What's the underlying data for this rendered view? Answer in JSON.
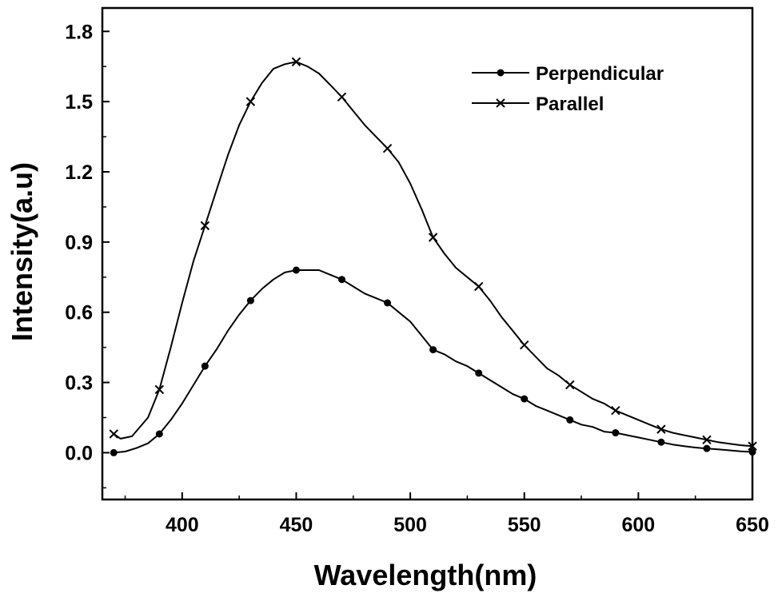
{
  "chart_data": {
    "type": "line",
    "xlabel": "Wavelength(nm)",
    "ylabel": "Intensity(a.u)",
    "xlim": [
      365,
      650
    ],
    "ylim": [
      -0.2,
      1.9
    ],
    "x_ticks": [
      400,
      450,
      500,
      550,
      600,
      650
    ],
    "y_ticks": [
      0.0,
      0.3,
      0.6,
      0.9,
      1.2,
      1.5,
      1.8
    ],
    "x_tick_labels": [
      "400",
      "450",
      "500",
      "550",
      "600",
      "650"
    ],
    "y_tick_labels": [
      "0.0",
      "0.3",
      "0.6",
      "0.9",
      "1.2",
      "1.5",
      "1.8"
    ],
    "grid": false,
    "legend_position": "top-right",
    "series": [
      {
        "name": "Perpendicular",
        "marker": "circle",
        "color": "#000000",
        "curve": [
          [
            370,
            0.0
          ],
          [
            375,
            0.005
          ],
          [
            380,
            0.02
          ],
          [
            385,
            0.04
          ],
          [
            390,
            0.08
          ],
          [
            395,
            0.14
          ],
          [
            400,
            0.21
          ],
          [
            405,
            0.29
          ],
          [
            410,
            0.37
          ],
          [
            415,
            0.44
          ],
          [
            420,
            0.52
          ],
          [
            425,
            0.59
          ],
          [
            430,
            0.65
          ],
          [
            435,
            0.7
          ],
          [
            440,
            0.74
          ],
          [
            445,
            0.77
          ],
          [
            450,
            0.78
          ],
          [
            455,
            0.78
          ],
          [
            460,
            0.78
          ],
          [
            465,
            0.76
          ],
          [
            470,
            0.74
          ],
          [
            475,
            0.71
          ],
          [
            480,
            0.68
          ],
          [
            485,
            0.66
          ],
          [
            490,
            0.64
          ],
          [
            495,
            0.6
          ],
          [
            500,
            0.56
          ],
          [
            505,
            0.5
          ],
          [
            510,
            0.44
          ],
          [
            515,
            0.42
          ],
          [
            520,
            0.39
          ],
          [
            525,
            0.37
          ],
          [
            530,
            0.34
          ],
          [
            535,
            0.31
          ],
          [
            540,
            0.28
          ],
          [
            545,
            0.25
          ],
          [
            550,
            0.23
          ],
          [
            555,
            0.2
          ],
          [
            560,
            0.18
          ],
          [
            565,
            0.16
          ],
          [
            570,
            0.14
          ],
          [
            575,
            0.12
          ],
          [
            580,
            0.11
          ],
          [
            585,
            0.09
          ],
          [
            590,
            0.085
          ],
          [
            595,
            0.075
          ],
          [
            600,
            0.065
          ],
          [
            605,
            0.055
          ],
          [
            610,
            0.045
          ],
          [
            615,
            0.035
          ],
          [
            620,
            0.028
          ],
          [
            625,
            0.022
          ],
          [
            630,
            0.018
          ],
          [
            635,
            0.014
          ],
          [
            640,
            0.01
          ],
          [
            645,
            0.006
          ],
          [
            650,
            0.003
          ]
        ],
        "markers": [
          [
            370,
            0.0
          ],
          [
            390,
            0.08
          ],
          [
            410,
            0.37
          ],
          [
            430,
            0.65
          ],
          [
            450,
            0.78
          ],
          [
            470,
            0.74
          ],
          [
            490,
            0.64
          ],
          [
            510,
            0.44
          ],
          [
            530,
            0.34
          ],
          [
            550,
            0.23
          ],
          [
            570,
            0.14
          ],
          [
            590,
            0.085
          ],
          [
            610,
            0.045
          ],
          [
            630,
            0.018
          ],
          [
            650,
            0.003
          ]
        ]
      },
      {
        "name": "Parallel",
        "marker": "x",
        "color": "#000000",
        "curve": [
          [
            370,
            0.08
          ],
          [
            373,
            0.06
          ],
          [
            378,
            0.07
          ],
          [
            385,
            0.15
          ],
          [
            390,
            0.27
          ],
          [
            395,
            0.45
          ],
          [
            400,
            0.64
          ],
          [
            405,
            0.82
          ],
          [
            410,
            0.97
          ],
          [
            415,
            1.12
          ],
          [
            420,
            1.27
          ],
          [
            425,
            1.4
          ],
          [
            430,
            1.5
          ],
          [
            435,
            1.58
          ],
          [
            440,
            1.64
          ],
          [
            445,
            1.66
          ],
          [
            450,
            1.67
          ],
          [
            455,
            1.65
          ],
          [
            460,
            1.62
          ],
          [
            465,
            1.57
          ],
          [
            470,
            1.52
          ],
          [
            475,
            1.46
          ],
          [
            480,
            1.4
          ],
          [
            485,
            1.35
          ],
          [
            490,
            1.3
          ],
          [
            495,
            1.24
          ],
          [
            500,
            1.15
          ],
          [
            505,
            1.04
          ],
          [
            510,
            0.92
          ],
          [
            515,
            0.85
          ],
          [
            520,
            0.79
          ],
          [
            525,
            0.75
          ],
          [
            530,
            0.71
          ],
          [
            535,
            0.65
          ],
          [
            540,
            0.58
          ],
          [
            545,
            0.52
          ],
          [
            550,
            0.46
          ],
          [
            555,
            0.41
          ],
          [
            560,
            0.36
          ],
          [
            565,
            0.33
          ],
          [
            570,
            0.29
          ],
          [
            575,
            0.26
          ],
          [
            580,
            0.23
          ],
          [
            585,
            0.21
          ],
          [
            590,
            0.18
          ],
          [
            595,
            0.16
          ],
          [
            600,
            0.14
          ],
          [
            605,
            0.12
          ],
          [
            610,
            0.1
          ],
          [
            615,
            0.085
          ],
          [
            620,
            0.075
          ],
          [
            625,
            0.065
          ],
          [
            630,
            0.055
          ],
          [
            635,
            0.045
          ],
          [
            640,
            0.038
          ],
          [
            645,
            0.032
          ],
          [
            650,
            0.028
          ]
        ],
        "markers": [
          [
            370,
            0.08
          ],
          [
            390,
            0.27
          ],
          [
            410,
            0.97
          ],
          [
            430,
            1.5
          ],
          [
            450,
            1.67
          ],
          [
            470,
            1.52
          ],
          [
            490,
            1.3
          ],
          [
            510,
            0.92
          ],
          [
            530,
            0.71
          ],
          [
            550,
            0.46
          ],
          [
            570,
            0.29
          ],
          [
            590,
            0.18
          ],
          [
            610,
            0.1
          ],
          [
            630,
            0.055
          ],
          [
            650,
            0.028
          ]
        ]
      }
    ]
  }
}
